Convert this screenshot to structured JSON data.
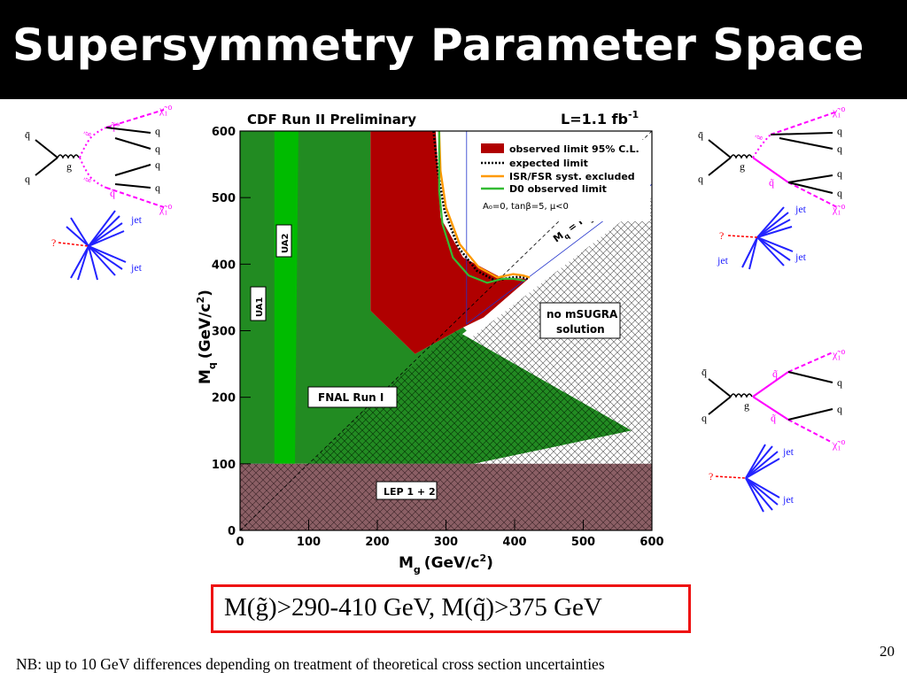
{
  "slide": {
    "title": "Supersymmetry Parameter Space",
    "result": "M(g̃)>290-410 GeV, M(q̃)>375 GeV",
    "footnote": "NB: up to 10 GeV differences depending on treatment of theoretical cross section uncertainties",
    "page_number": "20"
  },
  "colors": {
    "title_bg": "#000000",
    "observed": "#b00000",
    "expected": "#000000",
    "isr_fsr": "#ff9900",
    "d0": "#33bb33",
    "ua1": "#4444ff",
    "ua2": "#00bb00",
    "fnal": "#228b22",
    "lep": "#8b5f65",
    "feynman_pink": "#ff00ff",
    "jet_blue": "#2222ff",
    "result_border": "#ee1111"
  },
  "chart_data": {
    "type": "area",
    "title": "CDF Run II Preliminary",
    "luminosity": "L=1.1 fb",
    "luminosity_sup": "-1",
    "xlabel": "M",
    "xlabel_sub": "g",
    "xlabel_unit": "(GeV/c",
    "ylabel": "M",
    "ylabel_sub": "q",
    "ylabel_unit": "(GeV/c",
    "xlim": [
      0,
      600
    ],
    "ylim": [
      0,
      600
    ],
    "xticks": [
      "0",
      "100",
      "200",
      "300",
      "400",
      "500",
      "600"
    ],
    "yticks": [
      "0",
      "100",
      "200",
      "300",
      "400",
      "500",
      "600"
    ],
    "legend": {
      "position": "top-right",
      "entries": [
        {
          "label": "observed limit 95% C.L.",
          "style": "fill"
        },
        {
          "label": "expected limit",
          "style": "dotted"
        },
        {
          "label": "ISR/FSR syst. excluded",
          "style": "line"
        },
        {
          "label": "D0 observed limit",
          "style": "line"
        }
      ],
      "params": "A₀=0, tanβ=5, μ<0"
    },
    "diagonal_label": "M",
    "region_labels": {
      "ua1": "UA1",
      "ua2": "UA2",
      "fnal": "FNAL Run I",
      "lep": "LEP 1 + 2",
      "no_msugra_1": "no mSUGRA",
      "no_msugra_2": "solution"
    },
    "regions": {
      "ua1": [
        [
          0,
          100
        ],
        [
          50,
          100
        ],
        [
          50,
          600
        ],
        [
          0,
          600
        ]
      ],
      "ua2": [
        [
          50,
          100
        ],
        [
          80,
          100
        ],
        [
          85,
          600
        ],
        [
          50,
          600
        ]
      ],
      "fnal": [
        [
          80,
          100
        ],
        [
          200,
          200
        ],
        [
          315,
          300
        ],
        [
          570,
          150
        ],
        [
          340,
          100
        ],
        [
          0,
          100
        ],
        [
          0,
          600
        ],
        [
          85,
          600
        ],
        [
          190,
          600
        ],
        [
          190,
          330
        ],
        [
          255,
          265
        ],
        [
          325,
          305
        ],
        [
          330,
          300
        ]
      ],
      "observed": [
        [
          190,
          600
        ],
        [
          190,
          330
        ],
        [
          255,
          265
        ],
        [
          325,
          305
        ],
        [
          355,
          320
        ],
        [
          420,
          378
        ],
        [
          380,
          380
        ],
        [
          325,
          410
        ],
        [
          292,
          470
        ],
        [
          285,
          600
        ]
      ],
      "lep": [
        [
          0,
          0
        ],
        [
          600,
          0
        ],
        [
          600,
          100
        ],
        [
          0,
          100
        ]
      ],
      "no_msugra": [
        [
          100,
          100
        ],
        [
          600,
          500
        ],
        [
          600,
          100
        ]
      ]
    },
    "series": [
      {
        "name": "expected limit",
        "x": [
          282,
          288,
          298,
          318,
          345,
          372,
          395,
          410,
          420
        ],
        "y": [
          600,
          540,
          480,
          425,
          390,
          375,
          380,
          381,
          378
        ]
      },
      {
        "name": "ISR/FSR syst. excluded",
        "x": [
          290,
          292,
          300,
          320,
          348,
          375,
          398,
          412,
          422
        ],
        "y": [
          600,
          540,
          485,
          430,
          395,
          380,
          385,
          383,
          380
        ]
      },
      {
        "name": "D0 observed limit",
        "x": [
          290,
          290,
          295,
          310,
          333,
          360,
          382,
          398,
          415
        ],
        "y": [
          600,
          510,
          460,
          410,
          383,
          372,
          378,
          378,
          375
        ]
      }
    ],
    "diagonal": {
      "x": [
        0,
        600
      ],
      "y": [
        0,
        600
      ]
    }
  },
  "diagrams": {
    "top_left": {
      "labels": [
        "q̄",
        "g",
        "q",
        "g̃",
        "g̃",
        "q̃*",
        "q̃",
        "χ̃₁⁰",
        "χ̃₁⁰",
        "q",
        "q",
        "q",
        "q"
      ]
    },
    "top_right": {
      "labels": [
        "q̄",
        "g",
        "q",
        "g̃",
        "q̃",
        "χ̃₁⁰",
        "χ̃₁⁰",
        "q",
        "q",
        "q",
        "q"
      ]
    },
    "mid_right": {
      "labels": [
        "q̄",
        "g",
        "q",
        "q̃",
        "q̃",
        "χ̃₁⁰",
        "χ̃₁⁰",
        "q",
        "q"
      ]
    },
    "jets": {
      "jet": "jet",
      "missing": "?"
    }
  }
}
